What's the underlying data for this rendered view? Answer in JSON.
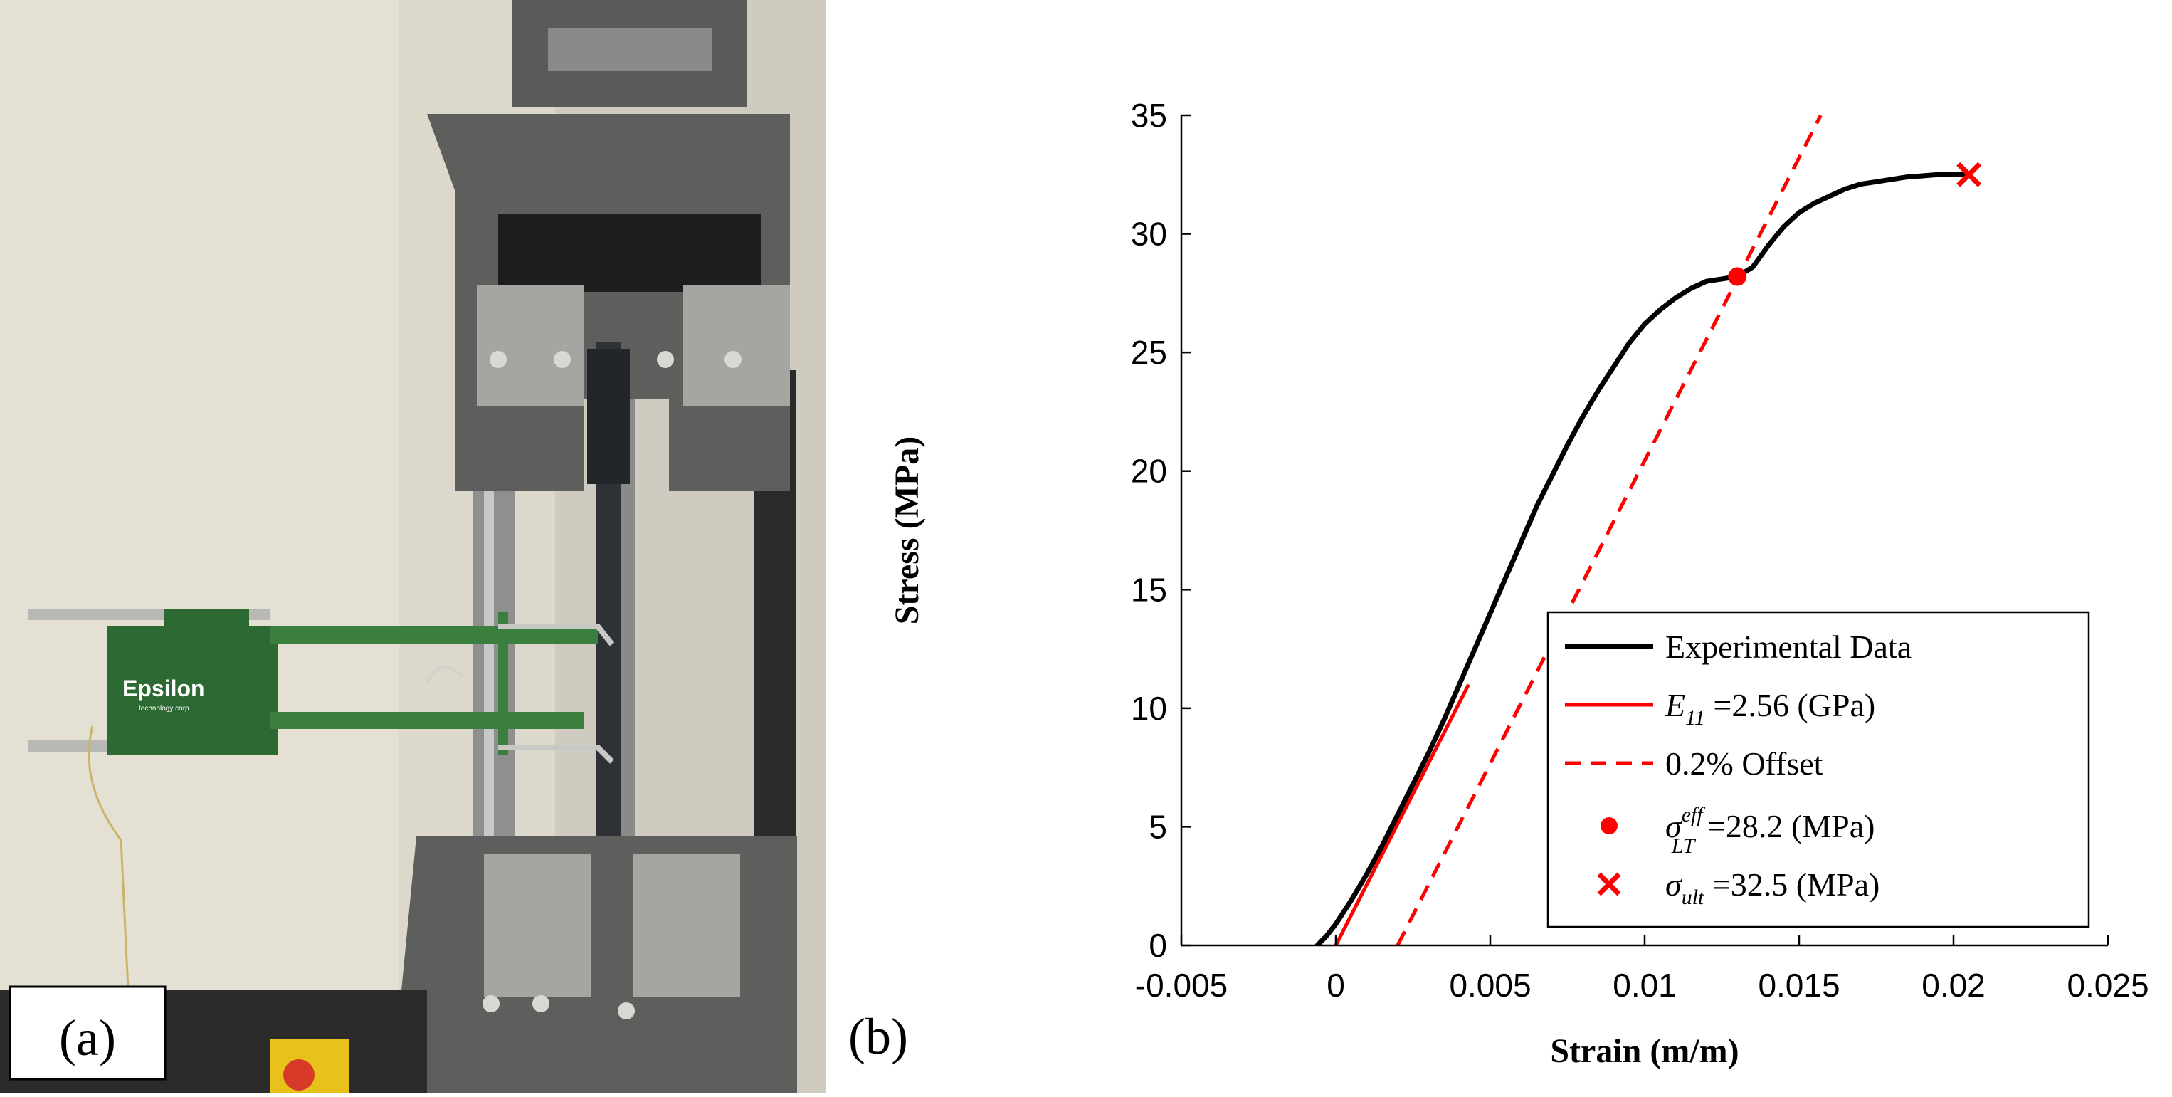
{
  "panels": {
    "a": {
      "label": "(a)",
      "device_brand": "Epsilon",
      "device_sub": "technology corp"
    },
    "b": {
      "label": "(b)"
    }
  },
  "colors": {
    "experimental": "#000000",
    "fit": "#ff0000",
    "marker": "#ff0000"
  },
  "chart_data": {
    "type": "line",
    "xlabel": "Strain (m/m)",
    "ylabel": "Stress (MPa)",
    "xlim": [
      -0.005,
      0.025
    ],
    "ylim": [
      0,
      35
    ],
    "xticks": [
      -0.005,
      0,
      0.005,
      0.01,
      0.015,
      0.02,
      0.025
    ],
    "xtick_labels": [
      "-0.005",
      "0",
      "0.005",
      "0.01",
      "0.015",
      "0.02",
      "0.025"
    ],
    "yticks": [
      0,
      5,
      10,
      15,
      20,
      25,
      30,
      35
    ],
    "ytick_labels": [
      "0",
      "5",
      "10",
      "15",
      "20",
      "25",
      "30",
      "35"
    ],
    "grid": false,
    "legend_position": "bottom-right",
    "series": [
      {
        "name": "Experimental Data",
        "style": "solid-black",
        "x": [
          -0.0006,
          -0.0003,
          0.0,
          0.0005,
          0.001,
          0.0015,
          0.002,
          0.0025,
          0.003,
          0.0035,
          0.004,
          0.0045,
          0.005,
          0.0055,
          0.006,
          0.0065,
          0.007,
          0.0075,
          0.008,
          0.0085,
          0.009,
          0.0095,
          0.01,
          0.0105,
          0.011,
          0.0115,
          0.012,
          0.0125,
          0.013,
          0.0135,
          0.014,
          0.0145,
          0.015,
          0.0155,
          0.016,
          0.0165,
          0.017,
          0.0175,
          0.018,
          0.0185,
          0.019,
          0.0195,
          0.0205
        ],
        "y": [
          0.0,
          0.4,
          0.9,
          1.9,
          3.0,
          4.2,
          5.5,
          6.8,
          8.1,
          9.5,
          11.0,
          12.5,
          14.0,
          15.5,
          17.0,
          18.5,
          19.8,
          21.1,
          22.3,
          23.4,
          24.4,
          25.4,
          26.2,
          26.8,
          27.3,
          27.7,
          28.0,
          28.1,
          28.2,
          28.6,
          29.5,
          30.3,
          30.9,
          31.3,
          31.6,
          31.9,
          32.1,
          32.2,
          32.3,
          32.4,
          32.45,
          32.5,
          32.5
        ]
      },
      {
        "name": "E_11 =2.56 (GPa)",
        "style": "solid-red",
        "x": [
          0.0,
          0.0043
        ],
        "y": [
          0.0,
          11.0
        ]
      },
      {
        "name": "0.2% Offset",
        "style": "dashed-red",
        "x": [
          0.002,
          0.0157
        ],
        "y": [
          0.0,
          35.0
        ]
      },
      {
        "name": "sigma_LT^eff =28.2 (MPa)",
        "style": "dot-red",
        "x": [
          0.013
        ],
        "y": [
          28.2
        ]
      },
      {
        "name": "sigma_ult =32.5 (MPa)",
        "style": "x-red",
        "x": [
          0.0205
        ],
        "y": [
          32.5
        ]
      }
    ],
    "legend": {
      "entries": [
        {
          "main": "Experimental Data",
          "tail": ""
        },
        {
          "main": "E",
          "sub": "11",
          "tail": " =2.56 (GPa)"
        },
        {
          "main": "0.2% Offset",
          "tail": ""
        },
        {
          "main": "σ",
          "sub": "LT",
          "sup": "eff",
          "tail": " =28.2 (MPa)"
        },
        {
          "main": "σ",
          "sub": "ult",
          "tail": " =32.5 (MPa)"
        }
      ]
    }
  }
}
